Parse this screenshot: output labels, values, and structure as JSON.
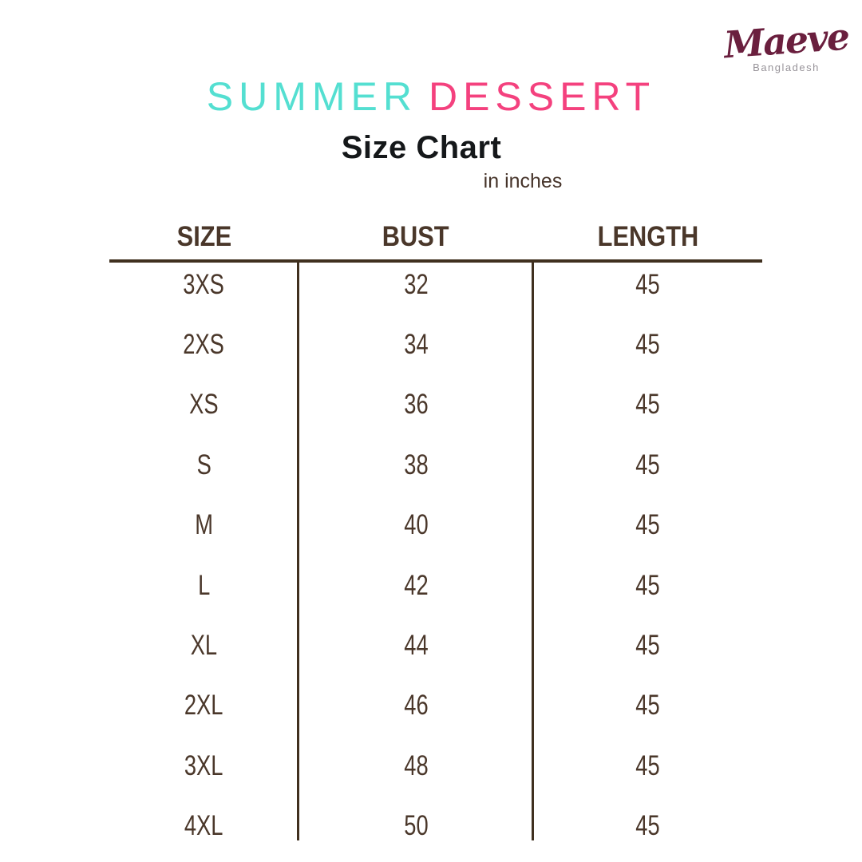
{
  "logo": {
    "brand": "Maeve",
    "tagline": "Bangladesh"
  },
  "header": {
    "title_part1": "SUMMER",
    "title_part2": "DESSERT",
    "subtitle": "Size Chart",
    "unit_note": "in inches"
  },
  "colors": {
    "title_teal": "#54dfd1",
    "title_pink": "#f4417e",
    "table_brown": "#4a372a",
    "line_brown": "#40301f",
    "brand_maroon": "#6a1f3e",
    "tagline_gray": "#979399",
    "subtitle_dark": "#15181a",
    "background": "#ffffff"
  },
  "chart_data": {
    "type": "table",
    "title": "SUMMER DESSERT",
    "subtitle": "Size Chart",
    "units": "in inches",
    "columns": [
      "SIZE",
      "BUST",
      "LENGTH"
    ],
    "rows": [
      [
        "3XS",
        "32",
        "45"
      ],
      [
        "2XS",
        "34",
        "45"
      ],
      [
        "XS",
        "36",
        "45"
      ],
      [
        "S",
        "38",
        "45"
      ],
      [
        "M",
        "40",
        "45"
      ],
      [
        "L",
        "42",
        "45"
      ],
      [
        "XL",
        "44",
        "45"
      ],
      [
        "2XL",
        "46",
        "45"
      ],
      [
        "3XL",
        "48",
        "45"
      ],
      [
        "4XL",
        "50",
        "45"
      ]
    ]
  }
}
